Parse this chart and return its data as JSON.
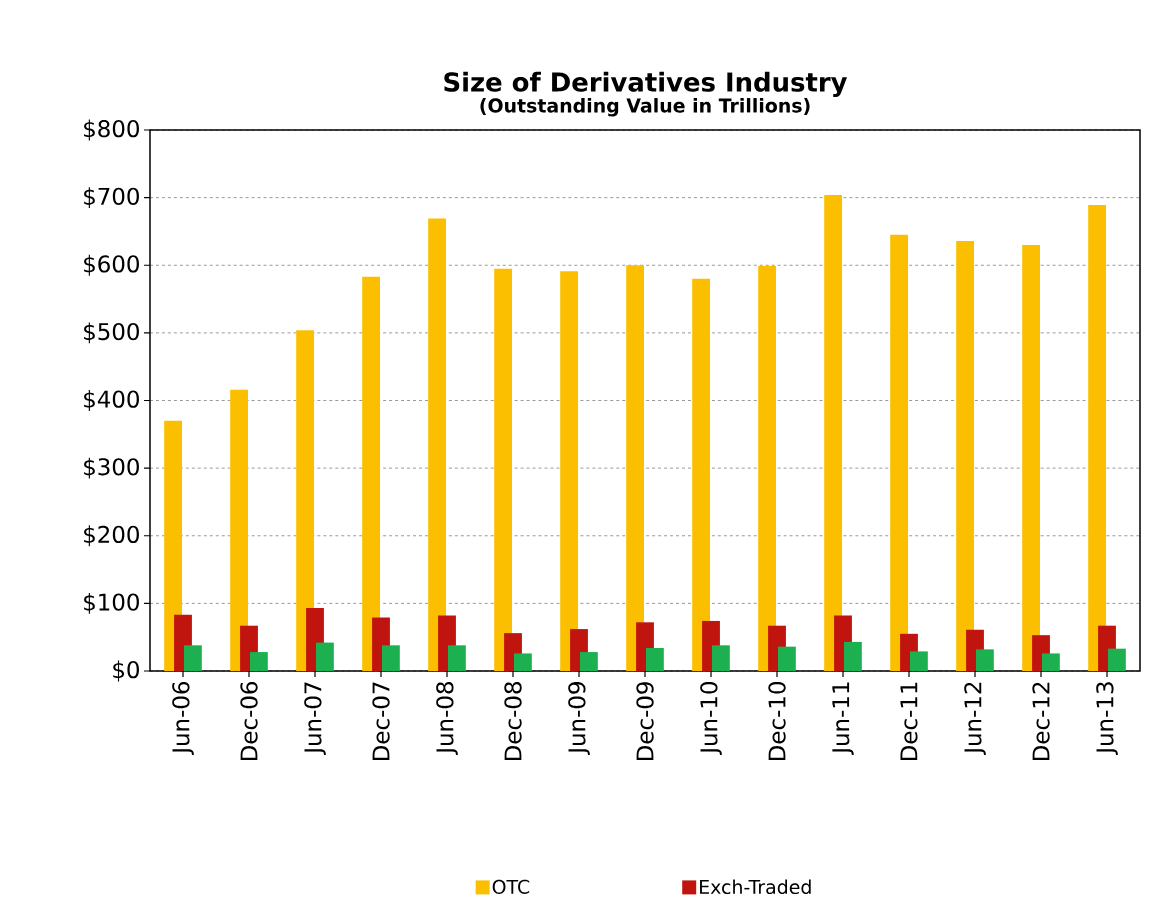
{
  "chart_data": {
    "type": "bar",
    "title": "Size of Derivatives Industry",
    "subtitle": "(Outstanding Value in Trillions)",
    "categories": [
      "Jun-06",
      "Dec-06",
      "Jun-07",
      "Dec-07",
      "Jun-08",
      "Dec-08",
      "Jun-09",
      "Dec-09",
      "Jun-10",
      "Dec-10",
      "Jun-11",
      "Dec-11",
      "Jun-12",
      "Dec-12",
      "Jun-13"
    ],
    "series": [
      {
        "name": "OTC",
        "color": "#fbbf00",
        "values": [
          370,
          416,
          504,
          583,
          669,
          595,
          591,
          600,
          580,
          599,
          704,
          645,
          636,
          630,
          689
        ]
      },
      {
        "name": "Exch-Traded",
        "color": "#c0140e",
        "values": [
          83,
          67,
          93,
          79,
          82,
          56,
          62,
          72,
          74,
          67,
          82,
          55,
          61,
          53,
          67
        ]
      },
      {
        "color": "#1cb050",
        "values": [
          38,
          28,
          42,
          38,
          38,
          26,
          28,
          34,
          38,
          36,
          43,
          29,
          32,
          26,
          33
        ]
      }
    ],
    "ylim": [
      0,
      800
    ],
    "yticks": [
      {
        "value": 0,
        "label": "$0"
      },
      {
        "value": 100,
        "label": "$100"
      },
      {
        "value": 200,
        "label": "$200"
      },
      {
        "value": 300,
        "label": "$300"
      },
      {
        "value": 400,
        "label": "$400"
      },
      {
        "value": 500,
        "label": "$500"
      },
      {
        "value": 600,
        "label": "$600"
      },
      {
        "value": 700,
        "label": "$700"
      },
      {
        "value": 800,
        "label": "$800"
      }
    ],
    "grid": "y",
    "legend": "bottom"
  }
}
